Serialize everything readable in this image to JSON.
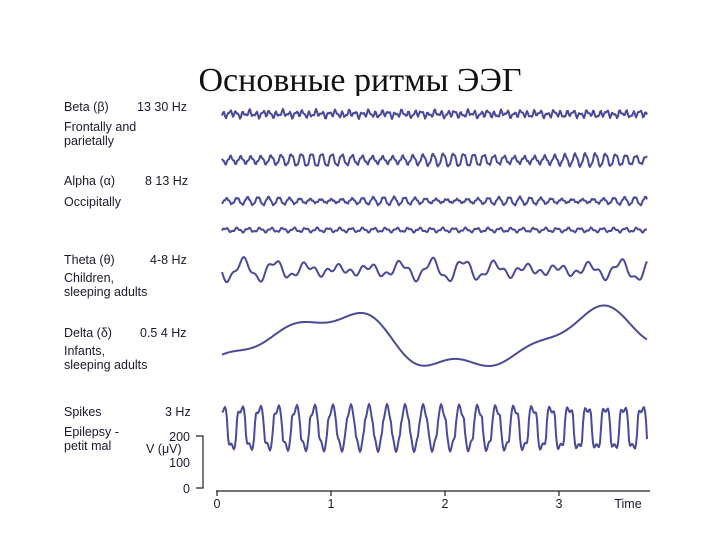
{
  "slide": {
    "title": "Основные ритмы ЭЭГ"
  },
  "colors": {
    "trace": "#4a4a9a",
    "text": "#1a1a2e",
    "axis": "#222222"
  },
  "rhythms": [
    {
      "name": "Beta (β)",
      "freq": "13 30 Hz",
      "desc": [
        "Frontally and",
        "parietally"
      ]
    },
    {
      "name": "Alpha (α)",
      "freq": "8 13 Hz",
      "desc": [
        "Occipitally"
      ]
    },
    {
      "name": "Theta (θ)",
      "freq": "4-8 Hz",
      "desc": [
        "Children,",
        "sleeping adults"
      ]
    },
    {
      "name": "Delta (δ)",
      "freq": "0.5 4 Hz",
      "desc": [
        "Infants,",
        "sleeping adults"
      ]
    },
    {
      "name": "Spikes",
      "freq": "3 Hz",
      "desc": [
        "Epilepsy -",
        "petit mal"
      ]
    }
  ],
  "voltage_axis": {
    "label": "V (μV)",
    "ticks": [
      "200",
      "100",
      "0"
    ]
  },
  "time_axis": {
    "label": "Time",
    "ticks": [
      "0",
      "1",
      "2",
      "3"
    ]
  }
}
